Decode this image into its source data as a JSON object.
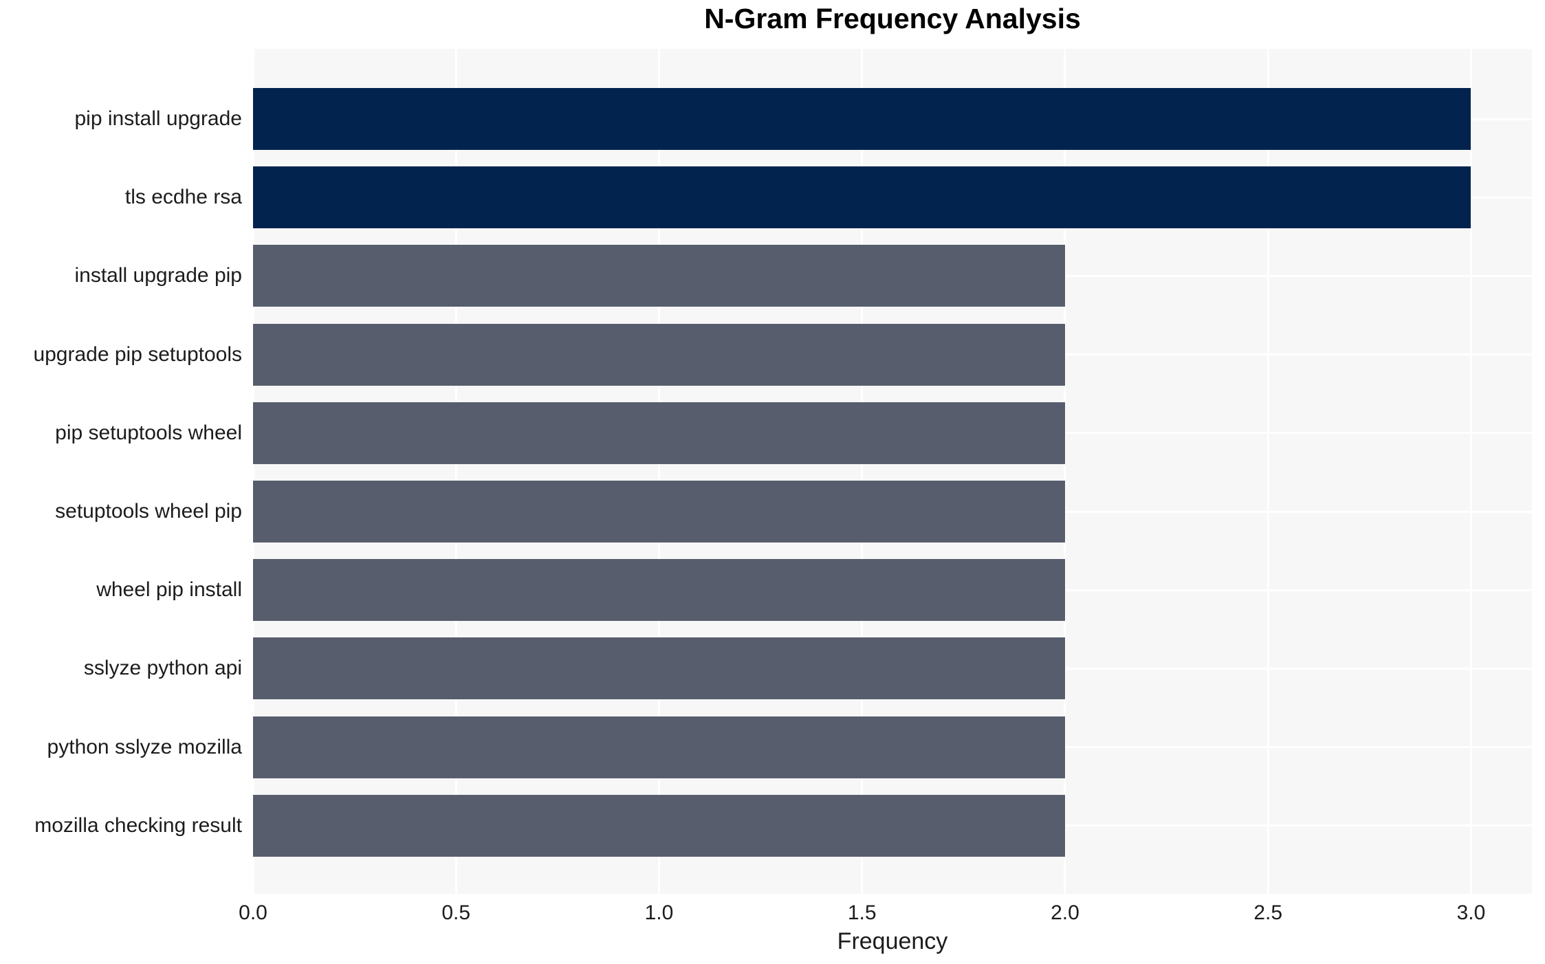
{
  "chart_data": {
    "type": "bar",
    "orientation": "horizontal",
    "title": "N-Gram Frequency Analysis",
    "xlabel": "Frequency",
    "ylabel": "",
    "categories": [
      "pip install upgrade",
      "tls ecdhe rsa",
      "install upgrade pip",
      "upgrade pip setuptools",
      "pip setuptools wheel",
      "setuptools wheel pip",
      "wheel pip install",
      "sslyze python api",
      "python sslyze mozilla",
      "mozilla checking result"
    ],
    "values": [
      3,
      3,
      2,
      2,
      2,
      2,
      2,
      2,
      2,
      2
    ],
    "bar_colors": [
      "#02234d",
      "#02234d",
      "#575d6c",
      "#575d6c",
      "#575d6c",
      "#575d6c",
      "#575d6c",
      "#575d6c",
      "#575d6c",
      "#575d6c"
    ],
    "xlim": [
      0,
      3.15
    ],
    "xtick_values": [
      0.0,
      0.5,
      1.0,
      1.5,
      2.0,
      2.5,
      3.0
    ],
    "xtick_labels": [
      "0.0",
      "0.5",
      "1.0",
      "1.5",
      "2.0",
      "2.5",
      "3.0"
    ],
    "grid": "on",
    "legend": "none",
    "styles": {
      "figure_bg": "#ffffff",
      "plot_bg": "#f7f7f8",
      "grid_color": "#ffffff",
      "tick_label_color": "#1c1c1c",
      "title_color": "#000000",
      "high_value_color": "#02234d",
      "low_value_color": "#575d6c"
    }
  }
}
